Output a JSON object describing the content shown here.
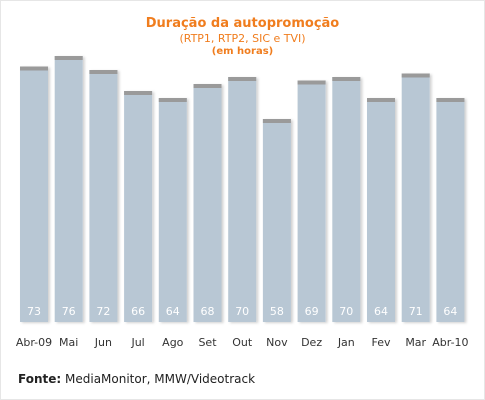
{
  "chart_data": {
    "type": "bar",
    "title": "Duração da autopromoção",
    "subtitle": "(RTP1, RTP2, SIC e TVI)",
    "unit_note": "(em horas)",
    "categories": [
      "Abr-09",
      "Mai",
      "Jun",
      "Jul",
      "Ago",
      "Set",
      "Out",
      "Nov",
      "Dez",
      "Jan",
      "Fev",
      "Mar",
      "Abr-10"
    ],
    "values": [
      73,
      76,
      72,
      66,
      64,
      68,
      70,
      58,
      69,
      70,
      64,
      71,
      64
    ],
    "data_labels": [
      "73",
      "76",
      "72",
      "66",
      "64",
      "68",
      "70",
      "58",
      "69",
      "70",
      "64",
      "71",
      "64"
    ],
    "ylim": [
      0,
      80
    ],
    "grid": false,
    "legend": "none",
    "bar_color": "#b8c7d4",
    "bar_cap_color": "#9a9a9a",
    "title_color": "#f07d1e"
  },
  "source": {
    "label": "Fonte:",
    "text": "MediaMonitor, MMW/Videotrack"
  }
}
